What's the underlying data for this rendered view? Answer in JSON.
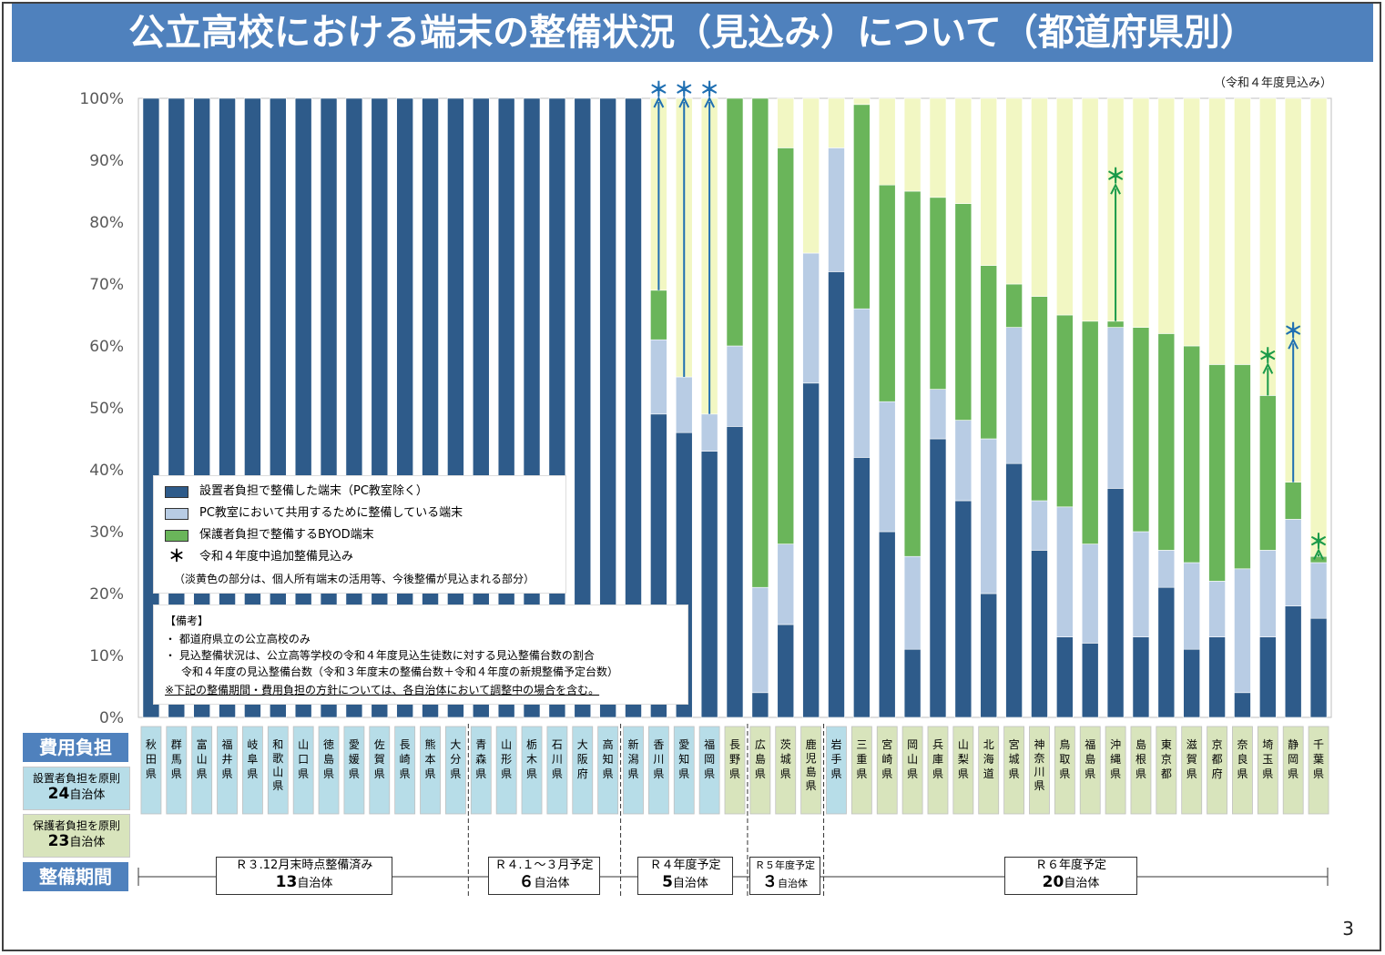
{
  "title": "公立高校における端末の整備状況（見込み）について（都道府県別）",
  "subnote": "（令和４年度見込み）",
  "page_number": "3",
  "colors": {
    "setter": "#2e5b8a",
    "pc": "#b8cce4",
    "byod": "#6ab55a",
    "potential": "#f2f7c3",
    "arrow_blue": "#1f6fb2",
    "arrow_green": "#1a9a49",
    "label_blue": "#b7dde8",
    "label_green": "#d8e4bc",
    "header_blue": "#4f81bd"
  },
  "legend": {
    "items": [
      {
        "label": "設置者負担で整備した端末（PC教室除く）"
      },
      {
        "label": "PC教室において共用するために整備している端末"
      },
      {
        "label": "保護者負担で整備するBYOD端末"
      },
      {
        "label": "令和４年度中追加整備見込み"
      }
    ],
    "note": "（淡黄色の部分は、個人所有端末の活用等、今後整備が見込まれる部分）",
    "asterisk": "＊"
  },
  "notes": {
    "header": "【備考】",
    "line1": "・ 都道府県立の公立高校のみ",
    "line2": "・ 見込整備状況は、公立高等学校の令和４年度見込生徒数に対する見込整備台数の割合",
    "line3": "令和４年度の見込整備台数（令和３年度末の整備台数＋令和４年度の新規整備予定台数）",
    "line4": "※下記の整備期間・費用負担の方針については、各自治体において調整中の場合を含む。"
  },
  "cost_header": "費用負担",
  "period_header": "整備期間",
  "cost_setter": {
    "line1": "設置者負担を原則",
    "count": "24",
    "unit": "自治体"
  },
  "cost_parent": {
    "line1": "保護者負担を原則",
    "count": "23",
    "unit": "自治体"
  },
  "periods": [
    {
      "label": "Ｒ３.12月末時点整備済み",
      "count": "13",
      "unit": "自治体"
    },
    {
      "label": "Ｒ４.１～３月予定",
      "count": "６",
      "unit": "自治体"
    },
    {
      "label": "Ｒ４年度予定",
      "count": "5",
      "unit": "自治体"
    },
    {
      "label": "Ｒ５年度予定",
      "count": "３",
      "unit": "自治体"
    },
    {
      "label": "Ｒ６年度予定",
      "count": "20",
      "unit": "自治体"
    }
  ],
  "chart_data": {
    "type": "bar",
    "stacked": true,
    "title": "公立高校における端末の整備状況（見込み）について（都道府県別）",
    "ylabel": "",
    "ylim": [
      0,
      100
    ],
    "yticks": [
      "0%",
      "10%",
      "20%",
      "30%",
      "40%",
      "50%",
      "60%",
      "70%",
      "80%",
      "90%",
      "100%"
    ],
    "categories": [
      "秋田県",
      "群馬県",
      "富山県",
      "福井県",
      "岐阜県",
      "和歌山県",
      "山口県",
      "徳島県",
      "愛媛県",
      "佐賀県",
      "長崎県",
      "熊本県",
      "大分県",
      "青森県",
      "山形県",
      "栃木県",
      "石川県",
      "大阪府",
      "高知県",
      "新潟県",
      "香川県",
      "愛知県",
      "福岡県",
      "長野県",
      "広島県",
      "茨城県",
      "鹿児島県",
      "岩手県",
      "三重県",
      "宮崎県",
      "岡山県",
      "兵庫県",
      "山梨県",
      "北海道",
      "宮城県",
      "神奈川県",
      "鳥取県",
      "福島県",
      "沖縄県",
      "島根県",
      "東京都",
      "滋賀県",
      "京都府",
      "奈良県",
      "埼玉県",
      "静岡県",
      "千葉県"
    ],
    "cost_policy": [
      "setter",
      "setter",
      "setter",
      "setter",
      "setter",
      "setter",
      "setter",
      "setter",
      "setter",
      "setter",
      "setter",
      "setter",
      "setter",
      "setter",
      "setter",
      "setter",
      "setter",
      "setter",
      "setter",
      "setter",
      "setter",
      "setter",
      "setter",
      "parent",
      "parent",
      "parent",
      "parent",
      "setter",
      "parent",
      "parent",
      "parent",
      "parent",
      "parent",
      "parent",
      "parent",
      "parent",
      "parent",
      "parent",
      "parent",
      "parent",
      "parent",
      "parent",
      "parent",
      "parent",
      "parent",
      "parent",
      "parent"
    ],
    "series": [
      {
        "name": "設置者負担で整備した端末（PC教室除く）",
        "values": [
          100,
          100,
          100,
          100,
          100,
          100,
          100,
          100,
          100,
          100,
          100,
          100,
          100,
          100,
          100,
          100,
          100,
          100,
          100,
          100,
          49,
          46,
          43,
          47,
          4,
          15,
          54,
          72,
          42,
          30,
          11,
          45,
          35,
          20,
          41,
          27,
          13,
          12,
          37,
          13,
          21,
          11,
          13,
          4,
          13,
          18,
          16
        ]
      },
      {
        "name": "PC教室において共用するために整備している端末",
        "values": [
          0,
          0,
          0,
          0,
          0,
          0,
          0,
          0,
          0,
          0,
          0,
          0,
          0,
          0,
          0,
          0,
          0,
          0,
          0,
          0,
          12,
          9,
          6,
          13,
          17,
          13,
          21,
          20,
          24,
          21,
          15,
          8,
          13,
          25,
          22,
          8,
          21,
          16,
          26,
          17,
          6,
          14,
          9,
          20,
          14,
          14,
          9
        ]
      },
      {
        "name": "保護者負担で整備するBYOD端末",
        "values": [
          0,
          0,
          0,
          0,
          0,
          0,
          0,
          0,
          0,
          0,
          0,
          0,
          0,
          0,
          0,
          0,
          0,
          0,
          0,
          0,
          8,
          0,
          0,
          40,
          79,
          64,
          0,
          0,
          33,
          35,
          59,
          31,
          35,
          28,
          7,
          33,
          31,
          36,
          1,
          33,
          35,
          35,
          35,
          33,
          25,
          6,
          1
        ]
      },
      {
        "name": "淡黄色（今後整備が見込まれる部分）",
        "values": [
          0,
          0,
          0,
          0,
          0,
          0,
          0,
          0,
          0,
          0,
          0,
          0,
          0,
          0,
          0,
          0,
          0,
          0,
          0,
          0,
          31,
          45,
          51,
          0,
          0,
          8,
          25,
          8,
          1,
          14,
          15,
          16,
          17,
          27,
          30,
          32,
          35,
          36,
          36,
          37,
          38,
          40,
          43,
          43,
          48,
          62,
          74
        ]
      }
    ],
    "additional_expected": [
      {
        "category": "香川県",
        "from": 69,
        "to": 100,
        "color": "blue"
      },
      {
        "category": "愛知県",
        "from": 55,
        "to": 100,
        "color": "blue"
      },
      {
        "category": "福岡県",
        "from": 49,
        "to": 100,
        "color": "blue"
      },
      {
        "category": "沖縄県",
        "from": 64,
        "to": 86,
        "color": "green"
      },
      {
        "category": "埼玉県",
        "from": 52,
        "to": 57,
        "color": "green"
      },
      {
        "category": "静岡県",
        "from": 38,
        "to": 61,
        "color": "blue"
      },
      {
        "category": "千葉県",
        "from": 26,
        "to": 27,
        "color": "green"
      }
    ],
    "legend_position": "lower-left"
  }
}
